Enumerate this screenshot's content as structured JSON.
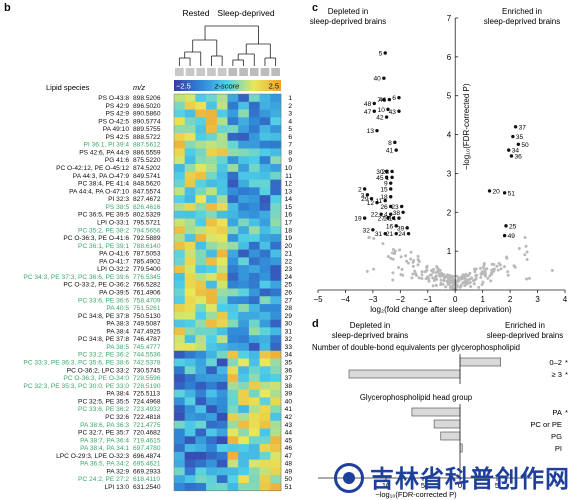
{
  "panels": {
    "b": "b",
    "c": "c",
    "d": "d"
  },
  "heatmap": {
    "group_labels": [
      "Rested",
      "Sleep-deprived"
    ],
    "colorbar": {
      "min_label": "−2.5",
      "mid_label": "z-score",
      "max_label": "2.5",
      "colors": [
        "#3a3aa8",
        "#2f86d6",
        "#4fd0e8",
        "#e8e85a",
        "#f0a030"
      ]
    },
    "headers": {
      "species": "Lipid species",
      "mz": "m/z"
    },
    "rows": [
      {
        "species": "PS O-43:8",
        "mz": "898.5206",
        "n": "1",
        "hl": false
      },
      {
        "species": "PS 42:9",
        "mz": "896.5020",
        "n": "2",
        "hl": false
      },
      {
        "species": "PS 42:9",
        "mz": "890.5860",
        "n": "3",
        "hl": false
      },
      {
        "species": "PS O-42:5",
        "mz": "890.5774",
        "n": "4",
        "hl": false
      },
      {
        "species": "PA 49:10",
        "mz": "889.5755",
        "n": "5",
        "hl": false
      },
      {
        "species": "PS 42:5",
        "mz": "888.5722",
        "n": "6",
        "hl": false
      },
      {
        "species": "PI 36:1, PI 39:4",
        "mz": "887.5612",
        "n": "7",
        "hl": true
      },
      {
        "species": "PS 42:6, PA 44:9",
        "mz": "886.5559",
        "n": "8",
        "hl": false
      },
      {
        "species": "PG 41:6",
        "mz": "875.5220",
        "n": "9",
        "hl": false
      },
      {
        "species": "PC O-42:12, PE O-45:12",
        "mz": "874.5202",
        "n": "10",
        "hl": false
      },
      {
        "species": "PA 44:3, PA O-47:9",
        "mz": "849.5741",
        "n": "11",
        "hl": false
      },
      {
        "species": "PC 38:4, PE 41:4",
        "mz": "848.5620",
        "n": "12",
        "hl": false
      },
      {
        "species": "PA 44:4, PA O-47:10",
        "mz": "847.5574",
        "n": "13",
        "hl": false
      },
      {
        "species": "PI 32:3",
        "mz": "827.4672",
        "n": "14",
        "hl": false
      },
      {
        "species": "PS 38:5",
        "mz": "826.4616",
        "n": "15",
        "hl": true
      },
      {
        "species": "PC 36:5, PE 39:5",
        "mz": "802.5329",
        "n": "16",
        "hl": false
      },
      {
        "species": "LPI O-33:1",
        "mz": "795.5721",
        "n": "17",
        "hl": false
      },
      {
        "species": "PC 35:2, PE 38:2",
        "mz": "794.5656",
        "n": "18",
        "hl": true
      },
      {
        "species": "PC O-36:3, PE O-41:6",
        "mz": "792.5889",
        "n": "19",
        "hl": false
      },
      {
        "species": "PC 36:1, PE 39:1",
        "mz": "788.6140",
        "n": "20",
        "hl": true
      },
      {
        "species": "PA O-41:6",
        "mz": "787.5053",
        "n": "21",
        "hl": false
      },
      {
        "species": "PA O-41:7",
        "mz": "785.4902",
        "n": "22",
        "hl": false
      },
      {
        "species": "LPI O-32:2",
        "mz": "779.5400",
        "n": "23",
        "hl": false
      },
      {
        "species": "PC 34:3, PE 37:3, PC 36:6, PE 39:6",
        "mz": "776.5345",
        "n": "24",
        "hl": true
      },
      {
        "species": "PC O-33:2, PE O-36:2",
        "mz": "766.5282",
        "n": "25",
        "hl": false
      },
      {
        "species": "PA O-39:5",
        "mz": "761.4906",
        "n": "26",
        "hl": false
      },
      {
        "species": "PC 33:6, PE 36:6",
        "mz": "758.4709",
        "n": "27",
        "hl": true
      },
      {
        "species": "PA 40:5",
        "mz": "751.5261",
        "n": "28",
        "hl": true
      },
      {
        "species": "PC 34:8, PE 37:8",
        "mz": "750.5130",
        "n": "29",
        "hl": false
      },
      {
        "species": "PA 38:3",
        "mz": "749.5087",
        "n": "30",
        "hl": false
      },
      {
        "species": "PA 38:4",
        "mz": "747.4925",
        "n": "31",
        "hl": false
      },
      {
        "species": "PC 34:8, PE 37:8",
        "mz": "746.4787",
        "n": "32",
        "hl": false
      },
      {
        "species": "PA 38:5",
        "mz": "745.4777",
        "n": "33",
        "hl": true
      },
      {
        "species": "PC 33:2, PE 36:2",
        "mz": "744.5536",
        "n": "34",
        "hl": true
      },
      {
        "species": "PC 33:3, PE 36:3, PC 35:6, PE 38:6",
        "mz": "742.5378",
        "n": "35",
        "hl": true
      },
      {
        "species": "PC O-36:2, LPC 33:2",
        "mz": "730.5745",
        "n": "36",
        "hl": false
      },
      {
        "species": "PC O-36:3, PE O-34:0",
        "mz": "728.5596",
        "n": "37",
        "hl": true
      },
      {
        "species": "PC 32:3, PE 35:3, PC 30:0, PE 33:0",
        "mz": "728.5190",
        "n": "38",
        "hl": true
      },
      {
        "species": "PA 38:4",
        "mz": "725.5113",
        "n": "39",
        "hl": false
      },
      {
        "species": "PC 32:5, PE 35:5",
        "mz": "724.4968",
        "n": "40",
        "hl": false
      },
      {
        "species": "PC 33:6, PE 36:2",
        "mz": "723.4932",
        "n": "41",
        "hl": true
      },
      {
        "species": "PC 32:6",
        "mz": "722.4818",
        "n": "42",
        "hl": false
      },
      {
        "species": "PA 38:6, PA 36:3",
        "mz": "721.4775",
        "n": "43",
        "hl": true
      },
      {
        "species": "PC 32:7, PE 35:7",
        "mz": "720.4682",
        "n": "44",
        "hl": false
      },
      {
        "species": "PA 38:7, PA 36:4",
        "mz": "719.4615",
        "n": "45",
        "hl": true
      },
      {
        "species": "PA 38:4, PA 34:1",
        "mz": "697.4780",
        "n": "46",
        "hl": true
      },
      {
        "species": "LPC O-29:3, LPE O-32:3",
        "mz": "696.4874",
        "n": "47",
        "hl": false
      },
      {
        "species": "PA 36:5, PA 34:2",
        "mz": "695.4621",
        "n": "48",
        "hl": true
      },
      {
        "species": "PA 32:9",
        "mz": "669.2933",
        "n": "49",
        "hl": false
      },
      {
        "species": "PC 24:2, PE 27:2",
        "mz": "618.4110",
        "n": "50",
        "hl": true
      },
      {
        "species": "LPI 13:0",
        "mz": "631.2540",
        "n": "51",
        "hl": false
      }
    ]
  },
  "chart_data": [
    {
      "type": "scatter",
      "panel": "c",
      "header_left": "Depleted in sleep-deprived brains",
      "header_right": "Enriched in sleep-deprived brains",
      "xlabel": "log₂(fold change after sleep deprivation)",
      "ylabel": "−log₁₀(FDR-corrected P)",
      "xlim": [
        -5,
        4
      ],
      "ylim": [
        0,
        7
      ],
      "xticks": [
        -5,
        -4,
        -3,
        -2,
        -1,
        0,
        1,
        2,
        3,
        4
      ],
      "yticks": [
        1,
        2,
        3,
        4,
        5,
        6,
        7
      ],
      "tick_labels_x": [
        "−5",
        "−4",
        "−3",
        "−2",
        "−1",
        "0",
        "1",
        "2",
        "3",
        "4"
      ],
      "tick_labels_y": [
        "1",
        "2",
        "3",
        "4",
        "5",
        "6",
        "7"
      ],
      "labeled_points": [
        {
          "label": "5",
          "x": -2.55,
          "y": 6.1
        },
        {
          "label": "40",
          "x": -2.6,
          "y": 5.45
        },
        {
          "label": "7",
          "x": -2.6,
          "y": 4.9
        },
        {
          "label": "46",
          "x": -2.4,
          "y": 4.9
        },
        {
          "label": "6",
          "x": -2.05,
          "y": 4.95
        },
        {
          "label": "48",
          "x": -2.95,
          "y": 4.8
        },
        {
          "label": "47",
          "x": -2.95,
          "y": 4.6
        },
        {
          "label": "10",
          "x": -2.45,
          "y": 4.65
        },
        {
          "label": "43",
          "x": -2.05,
          "y": 4.6
        },
        {
          "label": "42",
          "x": -2.5,
          "y": 4.45
        },
        {
          "label": "13",
          "x": -2.85,
          "y": 4.1
        },
        {
          "label": "8",
          "x": -2.2,
          "y": 3.8
        },
        {
          "label": "41",
          "x": -2.15,
          "y": 3.6
        },
        {
          "label": "30",
          "x": -2.5,
          "y": 3.05
        },
        {
          "label": "28",
          "x": -2.3,
          "y": 3.05
        },
        {
          "label": "45",
          "x": -2.5,
          "y": 2.9
        },
        {
          "label": "1",
          "x": -2.3,
          "y": 2.9
        },
        {
          "label": "9",
          "x": -2.35,
          "y": 2.75
        },
        {
          "label": "2",
          "x": -3.3,
          "y": 2.6
        },
        {
          "label": "15",
          "x": -2.35,
          "y": 2.6
        },
        {
          "label": "3",
          "x": -3.2,
          "y": 2.45
        },
        {
          "label": "29",
          "x": -3.05,
          "y": 2.35
        },
        {
          "label": "12",
          "x": -2.85,
          "y": 2.25
        },
        {
          "label": "11",
          "x": -2.55,
          "y": 2.3
        },
        {
          "label": "18",
          "x": -2.35,
          "y": 2.4
        },
        {
          "label": "26",
          "x": -2.35,
          "y": 2.15
        },
        {
          "label": "23",
          "x": -1.95,
          "y": 2.15
        },
        {
          "label": "38",
          "x": -1.9,
          "y": 2.0
        },
        {
          "label": "4",
          "x": -2.35,
          "y": 1.95
        },
        {
          "label": "22",
          "x": -2.7,
          "y": 1.95
        },
        {
          "label": "27",
          "x": -2.45,
          "y": 1.85
        },
        {
          "label": "17",
          "x": -2.25,
          "y": 1.85
        },
        {
          "label": "14",
          "x": -2.05,
          "y": 1.85
        },
        {
          "label": "19",
          "x": -3.3,
          "y": 1.85
        },
        {
          "label": "16",
          "x": -2.15,
          "y": 1.65
        },
        {
          "label": "39",
          "x": -1.75,
          "y": 1.6
        },
        {
          "label": "32",
          "x": -3.0,
          "y": 1.55
        },
        {
          "label": "21",
          "x": -2.15,
          "y": 1.45
        },
        {
          "label": "31",
          "x": -2.55,
          "y": 1.45
        },
        {
          "label": "24",
          "x": -1.7,
          "y": 1.45
        },
        {
          "label": "37",
          "x": 2.2,
          "y": 4.2
        },
        {
          "label": "35",
          "x": 2.1,
          "y": 3.95
        },
        {
          "label": "50",
          "x": 2.3,
          "y": 3.75
        },
        {
          "label": "34",
          "x": 1.95,
          "y": 3.6
        },
        {
          "label": "36",
          "x": 2.05,
          "y": 3.45
        },
        {
          "label": "20",
          "x": 1.25,
          "y": 2.55
        },
        {
          "label": "51",
          "x": 1.8,
          "y": 2.5
        },
        {
          "label": "25",
          "x": 1.85,
          "y": 1.65
        },
        {
          "label": "49",
          "x": 1.8,
          "y": 1.4
        }
      ]
    },
    {
      "type": "bar",
      "panel": "d",
      "header_left": "Depleted in sleep-deprived brains",
      "header_right": "Enriched in sleep-deprived brains",
      "xlabel": "−log₁₀(FDR-corrected P)",
      "xtick_labels": [
        "10",
        "5",
        "0",
        "5"
      ],
      "groups": [
        {
          "title": "Number of double-bond equivalents per glycerophospholipid",
          "categories": [
            "0–2",
            "≥ 3"
          ],
          "values": [
            5.5,
            -15
          ],
          "marks": [
            "*",
            "*"
          ]
        },
        {
          "title": "Glycerophospholipid head group",
          "categories": [
            "PA",
            "PC or PE",
            "PG",
            "PI"
          ],
          "values": [
            -6.5,
            -3.5,
            -2.6,
            0.3
          ],
          "marks": [
            "*",
            "",
            "",
            ""
          ]
        }
      ]
    }
  ],
  "watermark": "吉林省科普创作网"
}
